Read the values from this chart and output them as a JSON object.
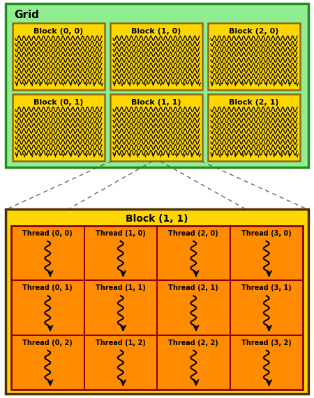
{
  "grid_color": "#90EE90",
  "grid_border_color": "#228B22",
  "grid_label": "Grid",
  "block_color": "#FFD700",
  "block_border_color": "#8B6914",
  "block_label_color": "#000000",
  "grid_blocks": [
    [
      "Block (0, 0)",
      "Block (1, 0)",
      "Block (2, 0)"
    ],
    [
      "Block (0, 1)",
      "Block (1, 1)",
      "Block (2, 1)"
    ]
  ],
  "thread_outer_color": "#FFD700",
  "thread_outer_border": "#4A3000",
  "thread_inner_color": "#FF8C00",
  "thread_inner_border": "#8B0000",
  "thread_block_label": "Block (1, 1)",
  "thread_grid": [
    [
      "Thread (0, 0)",
      "Thread (1, 0)",
      "Thread (2, 0)",
      "Thread (3, 0)"
    ],
    [
      "Thread (0, 1)",
      "Thread (1, 1)",
      "Thread (2, 1)",
      "Thread (3, 1)"
    ],
    [
      "Thread (0, 2)",
      "Thread (1, 2)",
      "Thread (2, 2)",
      "Thread (3, 2)"
    ]
  ],
  "bg_color": "#FFFFFF",
  "dashed_line_color": "#555555",
  "wavy_color": "#000000"
}
